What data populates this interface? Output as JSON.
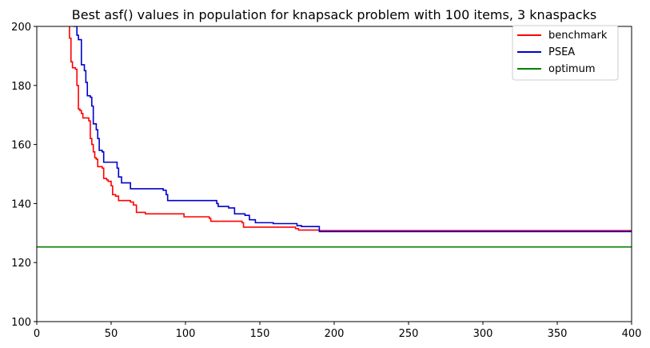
{
  "chart_data": {
    "type": "line",
    "title": "Best asf() values in population for knapsack problem with 100 items, 3 knaspacks",
    "xlabel": "",
    "ylabel": "",
    "xlim": [
      0,
      400
    ],
    "ylim": [
      100,
      200
    ],
    "xticks": [
      "0",
      "50",
      "100",
      "150",
      "200",
      "250",
      "300",
      "350",
      "400"
    ],
    "yticks": [
      "100",
      "120",
      "140",
      "160",
      "180",
      "200"
    ],
    "grid": false,
    "legend_position": "top-right",
    "series": [
      {
        "name": "benchmark",
        "color": "#ff0000",
        "step": true,
        "points": [
          [
            21,
            205
          ],
          [
            22,
            196
          ],
          [
            23,
            188
          ],
          [
            24,
            186
          ],
          [
            26,
            185.5
          ],
          [
            27,
            180
          ],
          [
            28,
            172
          ],
          [
            29,
            171.5
          ],
          [
            30,
            170.5
          ],
          [
            31,
            169
          ],
          [
            35,
            168
          ],
          [
            36,
            162
          ],
          [
            37,
            160
          ],
          [
            38,
            157.5
          ],
          [
            39,
            155.5
          ],
          [
            40,
            155
          ],
          [
            41,
            152.5
          ],
          [
            44,
            152
          ],
          [
            45,
            148.5
          ],
          [
            47,
            148
          ],
          [
            48,
            147.5
          ],
          [
            50,
            146
          ],
          [
            51,
            143
          ],
          [
            53,
            142.5
          ],
          [
            55,
            141
          ],
          [
            63,
            140.5
          ],
          [
            65,
            139.5
          ],
          [
            67,
            137
          ],
          [
            73,
            136.5
          ],
          [
            99,
            135.5
          ],
          [
            116,
            135
          ],
          [
            117,
            134
          ],
          [
            138,
            133.5
          ],
          [
            139,
            132
          ],
          [
            174,
            131.5
          ],
          [
            176,
            131
          ],
          [
            190,
            130.8
          ],
          [
            400,
            130.8
          ]
        ]
      },
      {
        "name": "PSEA",
        "color": "#0000cc",
        "step": true,
        "points": [
          [
            24,
            205
          ],
          [
            25,
            200
          ],
          [
            27,
            197
          ],
          [
            28,
            195.5
          ],
          [
            30,
            187
          ],
          [
            32,
            185
          ],
          [
            33,
            181
          ],
          [
            34,
            176.5
          ],
          [
            36,
            176
          ],
          [
            37,
            173
          ],
          [
            38,
            167
          ],
          [
            40,
            165
          ],
          [
            41,
            162
          ],
          [
            42,
            158
          ],
          [
            44,
            157.5
          ],
          [
            45,
            154
          ],
          [
            54,
            152
          ],
          [
            55,
            149
          ],
          [
            57,
            147
          ],
          [
            63,
            145
          ],
          [
            85,
            144.5
          ],
          [
            87,
            143
          ],
          [
            88,
            141
          ],
          [
            121,
            140
          ],
          [
            122,
            139
          ],
          [
            129,
            138.5
          ],
          [
            133,
            136.5
          ],
          [
            140,
            136
          ],
          [
            143,
            134.5
          ],
          [
            147,
            133.5
          ],
          [
            159,
            133.2
          ],
          [
            175,
            132.5
          ],
          [
            178,
            132.2
          ],
          [
            189,
            132.2
          ],
          [
            190,
            130.5
          ],
          [
            400,
            130.5
          ]
        ]
      },
      {
        "name": "optimum",
        "color": "#008000",
        "step": false,
        "points": [
          [
            0,
            125.3
          ],
          [
            400,
            125.3
          ]
        ]
      }
    ]
  }
}
